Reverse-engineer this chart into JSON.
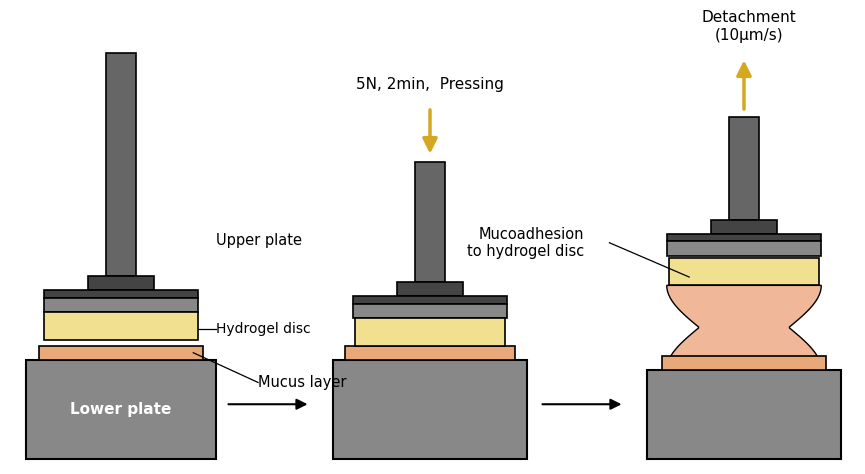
{
  "bg_color": "#ffffff",
  "shaft_color": "#666666",
  "head_dark": "#444444",
  "head_color": "#888888",
  "yellow_hydrogel": "#f0e090",
  "orange_mucus": "#e8a878",
  "orange_mucus_pulled": "#f0b898",
  "arrow_gold": "#d4a820",
  "lower_plate_color": "#888888",
  "black": "#000000",
  "labels": {
    "upper_plate": "Upper plate",
    "hydrogel_disc": "Hydrogel disc",
    "mucus_layer": "Mucus layer",
    "lower_plate": "Lower plate",
    "pressing": "5N, 2min,  Pressing",
    "detachment": "Detachment\n(10μm/s)",
    "mucoadhesion": "Mucoadhesion\nto hydrogel disc"
  }
}
